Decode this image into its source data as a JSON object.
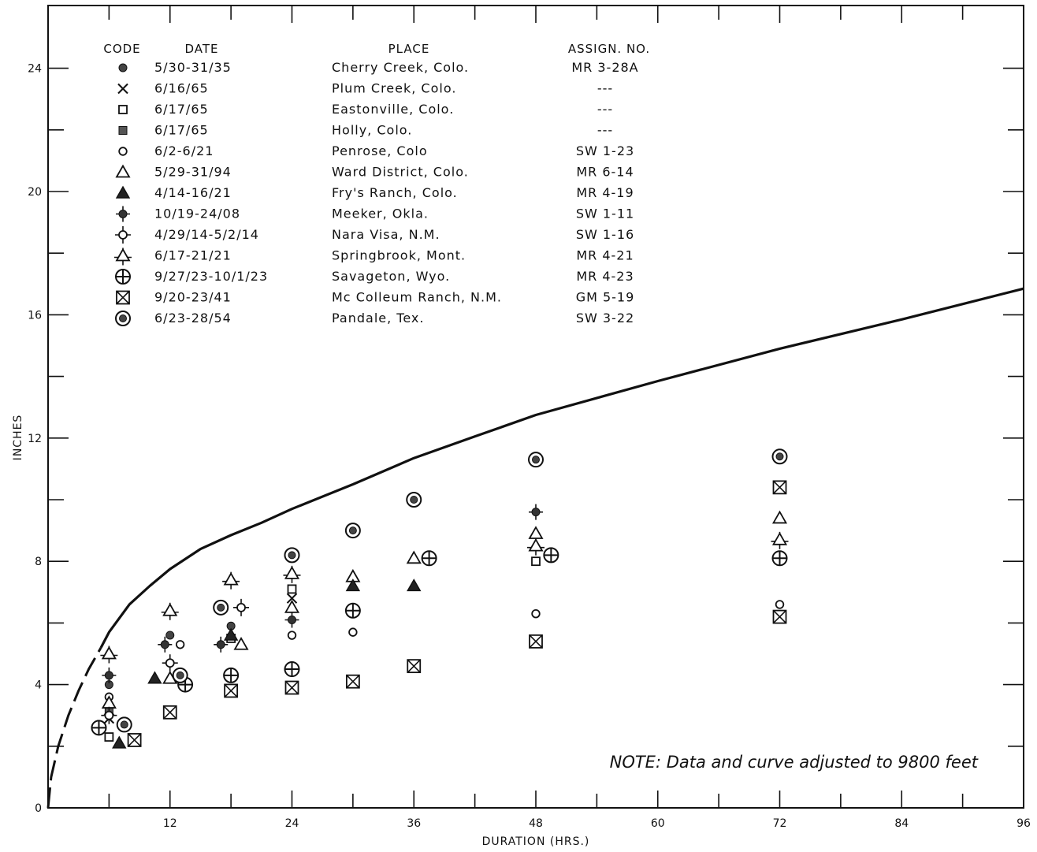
{
  "chart_data": {
    "type": "scatter",
    "title": "",
    "xlabel": "DURATION (HRS.)",
    "ylabel": "INCHES",
    "xlim": [
      0,
      96
    ],
    "ylim": [
      0,
      26
    ],
    "x_ticks": [
      12,
      24,
      36,
      48,
      60,
      72,
      84,
      96
    ],
    "y_ticks": [
      0,
      4,
      8,
      12,
      16,
      20,
      24
    ],
    "x_tick_labels": [
      "12",
      "24",
      "36",
      "48",
      "60",
      "72",
      "84",
      "96"
    ],
    "y_tick_labels": [
      "0",
      "4",
      "8",
      "12",
      "16",
      "20",
      "24"
    ],
    "grid": false,
    "legend_placement": "top-left",
    "legend_headers": {
      "code": "CODE",
      "date": "DATE",
      "place": "PLACE",
      "assign": "ASSIGN. NO."
    },
    "note": "NOTE: Data and curve adjusted to 9800 feet",
    "envelope_curve": {
      "dashed": [
        [
          0,
          0
        ],
        [
          0.3,
          1.0
        ],
        [
          1,
          2.0
        ],
        [
          2,
          3.0
        ],
        [
          3,
          3.8
        ],
        [
          4,
          4.5
        ],
        [
          5.2,
          5.2
        ]
      ],
      "solid": [
        [
          5.2,
          5.2
        ],
        [
          6,
          5.7
        ],
        [
          8,
          6.6
        ],
        [
          10,
          7.2
        ],
        [
          12,
          7.75
        ],
        [
          15,
          8.4
        ],
        [
          18,
          8.85
        ],
        [
          21,
          9.25
        ],
        [
          24,
          9.7
        ],
        [
          30,
          10.5
        ],
        [
          36,
          11.35
        ],
        [
          42,
          12.05
        ],
        [
          48,
          12.75
        ],
        [
          60,
          13.85
        ],
        [
          72,
          14.9
        ],
        [
          84,
          15.85
        ],
        [
          96,
          16.85
        ]
      ]
    },
    "series": [
      {
        "code": "dot",
        "date": "5/30-31/35",
        "place": "Cherry Creek, Colo.",
        "assign": "MR 3-28A",
        "points": [
          [
            6,
            4.0
          ],
          [
            12,
            5.6
          ],
          [
            18,
            5.9
          ]
        ]
      },
      {
        "code": "x",
        "date": "6/16/65",
        "place": "Plum Creek, Colo.",
        "assign": "---",
        "points": [
          [
            6,
            2.9
          ],
          [
            24,
            6.8
          ]
        ]
      },
      {
        "code": "square",
        "date": "6/17/65",
        "place": "Eastonville, Colo.",
        "assign": "---",
        "points": [
          [
            6,
            2.3
          ],
          [
            18,
            5.5
          ],
          [
            24,
            7.1
          ],
          [
            48,
            8.0
          ]
        ]
      },
      {
        "code": "filled-square",
        "date": "6/17/65",
        "place": "Holly, Colo.",
        "assign": "---",
        "points": [
          [
            6,
            3.2
          ]
        ]
      },
      {
        "code": "circle",
        "date": "6/2-6/21",
        "place": "Penrose, Colo",
        "assign": "SW 1-23",
        "points": [
          [
            6,
            3.6
          ],
          [
            13,
            5.3
          ],
          [
            24,
            5.6
          ],
          [
            30,
            5.7
          ],
          [
            48,
            6.3
          ],
          [
            72,
            6.6
          ]
        ]
      },
      {
        "code": "triangle",
        "date": "5/29-31/94",
        "place": "Ward District, Colo.",
        "assign": "MR 6-14",
        "points": [
          [
            6,
            3.4
          ],
          [
            12,
            4.2
          ],
          [
            19,
            5.3
          ],
          [
            24,
            6.5
          ],
          [
            30,
            7.5
          ],
          [
            36,
            8.1
          ],
          [
            48,
            8.9
          ],
          [
            72,
            9.4
          ]
        ]
      },
      {
        "code": "filled-triangle",
        "date": "4/14-16/21",
        "place": "Fry's Ranch, Colo.",
        "assign": "MR 4-19",
        "points": [
          [
            7,
            2.1
          ],
          [
            10.5,
            4.2
          ],
          [
            18,
            5.6
          ],
          [
            30,
            7.2
          ],
          [
            36,
            7.2
          ]
        ]
      },
      {
        "code": "filled-plus",
        "date": "10/19-24/08",
        "place": "Meeker, Okla.",
        "assign": "SW 1-11",
        "points": [
          [
            6,
            4.3
          ],
          [
            11.5,
            5.3
          ],
          [
            17,
            5.3
          ],
          [
            24,
            6.1
          ],
          [
            48,
            9.6
          ]
        ]
      },
      {
        "code": "circle-plus",
        "date": "4/29/14-5/2/14",
        "place": "Nara Visa, N.M.",
        "assign": "SW 1-16",
        "points": [
          [
            6,
            3.0
          ],
          [
            12,
            4.7
          ],
          [
            19,
            6.5
          ]
        ]
      },
      {
        "code": "triangle-plus",
        "date": "6/17-21/21",
        "place": "Springbrook, Mont.",
        "assign": "MR 4-21",
        "points": [
          [
            6,
            5.0
          ],
          [
            12,
            6.4
          ],
          [
            18,
            7.4
          ],
          [
            24,
            7.6
          ],
          [
            48,
            8.5
          ],
          [
            72,
            8.7
          ]
        ]
      },
      {
        "code": "crossed-circle",
        "date": "9/27/23-10/1/23",
        "place": "Savageton, Wyo.",
        "assign": "MR 4-23",
        "points": [
          [
            5,
            2.6
          ],
          [
            13.5,
            4.0
          ],
          [
            18,
            4.3
          ],
          [
            24,
            4.5
          ],
          [
            30,
            6.4
          ],
          [
            37.5,
            8.1
          ],
          [
            49.5,
            8.2
          ],
          [
            72,
            8.1
          ]
        ]
      },
      {
        "code": "crossed-square",
        "date": "9/20-23/41",
        "place": "Mc Colleum Ranch, N.M.",
        "assign": "GM 5-19",
        "points": [
          [
            8.5,
            2.2
          ],
          [
            12,
            3.1
          ],
          [
            18,
            3.8
          ],
          [
            24,
            3.9
          ],
          [
            30,
            4.1
          ],
          [
            36,
            4.6
          ],
          [
            48,
            5.4
          ],
          [
            72,
            6.2
          ],
          [
            72,
            10.4
          ]
        ]
      },
      {
        "code": "ringed-dot",
        "date": "6/23-28/54",
        "place": "Pandale, Tex.",
        "assign": "SW 3-22",
        "points": [
          [
            7.5,
            2.7
          ],
          [
            13,
            4.3
          ],
          [
            17,
            6.5
          ],
          [
            24,
            8.2
          ],
          [
            30,
            9.0
          ],
          [
            36,
            10.0
          ],
          [
            48,
            11.3
          ],
          [
            72,
            11.4
          ]
        ]
      }
    ]
  }
}
